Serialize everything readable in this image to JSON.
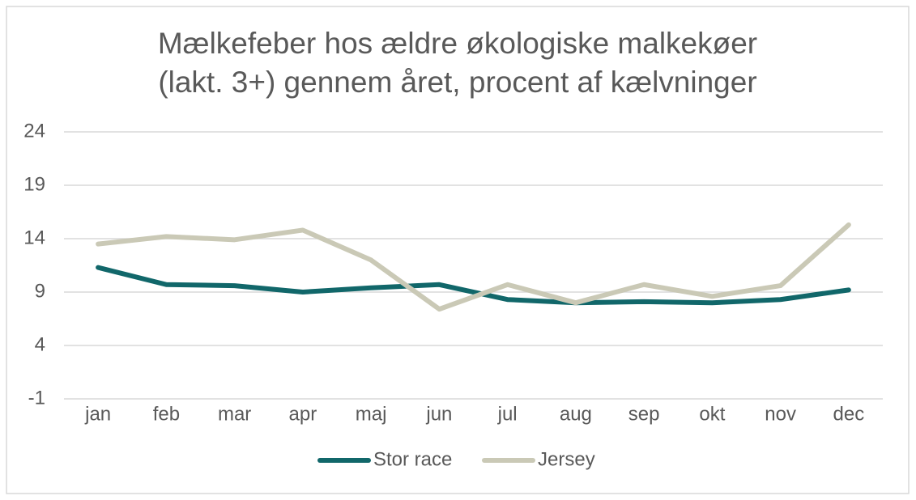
{
  "chart_data": {
    "type": "line",
    "title": [
      "Mælkefeber hos ældre økologiske malkekøer",
      "(lakt. 3+) gennem året, procent af kælvninger"
    ],
    "categories": [
      "jan",
      "feb",
      "mar",
      "apr",
      "maj",
      "jun",
      "jul",
      "aug",
      "sep",
      "okt",
      "nov",
      "dec"
    ],
    "series": [
      {
        "name": "Stor race",
        "color": "#11676a",
        "values": [
          11.3,
          9.7,
          9.6,
          9.0,
          9.4,
          9.7,
          8.3,
          8.0,
          8.1,
          8.0,
          8.3,
          9.2
        ]
      },
      {
        "name": "Jersey",
        "color": "#cac9b6",
        "values": [
          13.5,
          14.2,
          13.9,
          14.8,
          12.0,
          7.4,
          9.7,
          8.0,
          9.7,
          8.6,
          9.6,
          15.3
        ]
      }
    ],
    "ylim": [
      -1,
      24
    ],
    "yticks": [
      -1,
      4,
      9,
      14,
      19,
      24
    ],
    "grid": true,
    "legend": "bottom"
  }
}
